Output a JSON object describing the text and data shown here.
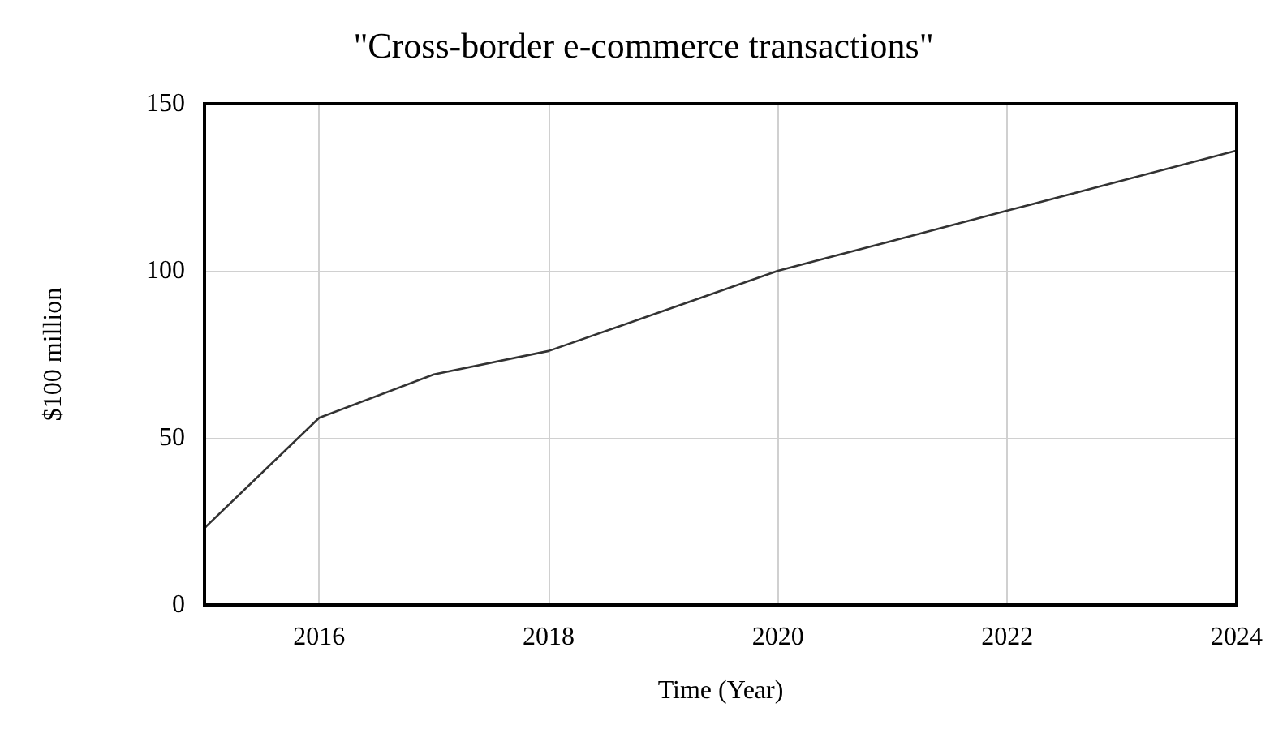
{
  "chart_data": {
    "type": "line",
    "title": "\"Cross-border e-commerce transactions\"",
    "xlabel": "Time (Year)",
    "ylabel": "$100 million",
    "x": [
      2015,
      2016,
      2017,
      2018,
      2019,
      2020,
      2021,
      2022,
      2023,
      2024
    ],
    "series": [
      {
        "color": "#333333",
        "values": [
          23,
          56,
          69,
          76,
          88,
          100,
          109,
          118,
          127,
          136
        ]
      }
    ],
    "xlim": [
      2015,
      2024
    ],
    "xticks": [
      2016,
      2018,
      2020,
      2022,
      2024
    ],
    "ylim": [
      0,
      150
    ],
    "yticks": [
      0,
      50,
      100,
      150
    ],
    "grid": true,
    "marker": "none",
    "line_style": "solid"
  }
}
